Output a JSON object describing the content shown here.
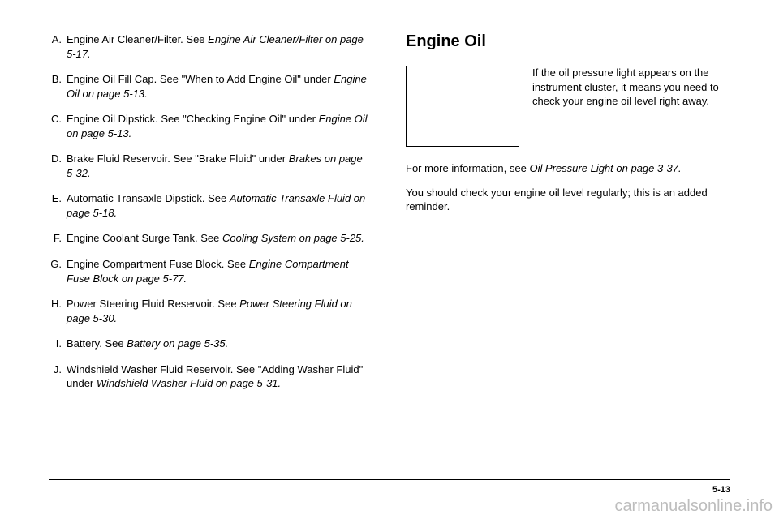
{
  "left": {
    "items": [
      {
        "letter": "A.",
        "plain1": "Engine Air Cleaner/Filter. See ",
        "italic": "Engine Air Cleaner/Filter on page 5-17.",
        "plain2": ""
      },
      {
        "letter": "B.",
        "plain1": "Engine Oil Fill Cap. See \"When to Add Engine Oil\" under ",
        "italic": "Engine Oil on page 5-13.",
        "plain2": ""
      },
      {
        "letter": "C.",
        "plain1": "Engine Oil Dipstick. See \"Checking Engine Oil\" under ",
        "italic": "Engine Oil on page 5-13.",
        "plain2": ""
      },
      {
        "letter": "D.",
        "plain1": "Brake Fluid Reservoir. See \"Brake Fluid\" under ",
        "italic": "Brakes on page 5-32.",
        "plain2": ""
      },
      {
        "letter": "E.",
        "plain1": "Automatic Transaxle Dipstick. See ",
        "italic": "Automatic Transaxle Fluid on page 5-18.",
        "plain2": ""
      },
      {
        "letter": "F.",
        "plain1": "Engine Coolant Surge Tank. See ",
        "italic": "Cooling System on page 5-25.",
        "plain2": ""
      },
      {
        "letter": "G.",
        "plain1": "Engine Compartment Fuse Block. See ",
        "italic": "Engine Compartment Fuse Block on page 5-77.",
        "plain2": ""
      },
      {
        "letter": "H.",
        "plain1": "Power Steering Fluid Reservoir. See ",
        "italic": "Power Steering Fluid on page 5-30.",
        "plain2": ""
      },
      {
        "letter": "I.",
        "plain1": "Battery. See ",
        "italic": "Battery on page 5-35.",
        "plain2": ""
      },
      {
        "letter": "J.",
        "plain1": "Windshield Washer Fluid Reservoir. See \"Adding Washer Fluid\" under ",
        "italic": "Windshield Washer Fluid on page 5-31.",
        "plain2": ""
      }
    ]
  },
  "right": {
    "heading": "Engine Oil",
    "oil_text": "If the oil pressure light appears on the instrument cluster, it means you need to check your engine oil level right away.",
    "para1_a": "For more information, see ",
    "para1_i": "Oil Pressure Light on page 3-37.",
    "para2": "You should check your engine oil level regularly; this is an added reminder."
  },
  "page_num": "5-13",
  "watermark": "carmanualsonline.info"
}
